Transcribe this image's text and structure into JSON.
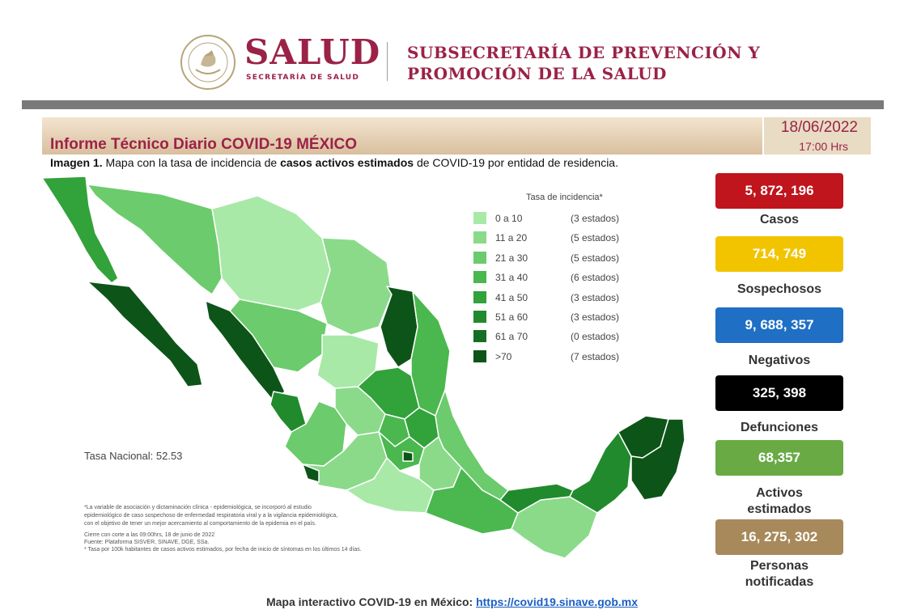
{
  "header": {
    "brand": "SALUD",
    "brand_sub": "SECRETARÍA DE SALUD",
    "subsecretaria_line1": "SUBSECRETARÍA DE PREVENCIÓN Y",
    "subsecretaria_line2": "PROMOCIÓN DE LA SALUD",
    "seal_text": "ESTADOS UNIDOS MEXICANOS"
  },
  "report": {
    "title": "Informe Técnico Diario COVID-19 MÉXICO",
    "date": "18/06/2022",
    "time": "17:00 Hrs",
    "caption_bold": "Imagen 1.",
    "caption_mid": " Mapa con la tasa de incidencia de ",
    "caption_bold2": "casos activos estimados",
    "caption_end": " de COVID-19 por entidad de residencia."
  },
  "legend": {
    "title": "Tasa de incidencia*",
    "items": [
      {
        "range": "0 a  10",
        "count": "(3 estados)",
        "color": "#a8e9a8"
      },
      {
        "range": "11 a  20",
        "count": "(5 estados)",
        "color": "#8ada8a"
      },
      {
        "range": "21 a  30",
        "count": "(5 estados)",
        "color": "#6ccb6c"
      },
      {
        "range": "31 a  40",
        "count": "(6 estados)",
        "color": "#4ab84e"
      },
      {
        "range": "41 a  50",
        "count": "(3 estados)",
        "color": "#32a23a"
      },
      {
        "range": "51 a  60",
        "count": "(3 estados)",
        "color": "#218a2c"
      },
      {
        "range": "61 a  70",
        "count": "(0 estados)",
        "color": "#156f22"
      },
      {
        "range": ">70",
        "count": "(7 estados)",
        "color": "#0d5418"
      }
    ]
  },
  "map": {
    "tasa_nacional": "Tasa Nacional: 52.53",
    "footnotes": [
      "*La variable de asociación y dictaminación clínica - epidemiológica, se incorporó al estudio",
      "epidemiológico de caso sospechoso de enfermedad respiratoria viral y a la vigilancia epidemiológica,",
      "con el objetivo de tener un mejor acercamiento al comportamiento de la epidemia en el país.",
      "Cierre con corte a las 09:00hrs, 18 de junio de 2022",
      "Fuente: Plataforma SISVER, SINAVE, DGE, SSa.",
      "* Tasa por 100k habitantes de casos activos estimados, por fecha de inicio de síntomas en los últimos 14 días."
    ]
  },
  "stats": [
    {
      "value": "5, 872, 196",
      "label": "Casos",
      "color": "#c0151d"
    },
    {
      "value": "714, 749",
      "label": "Sospechosos",
      "color": "#f2c400"
    },
    {
      "value": "9, 688, 357",
      "label": "Negativos",
      "color": "#1f6fc4"
    },
    {
      "value": "325, 398",
      "label": "Defunciones",
      "color": "#000000"
    },
    {
      "value": "68,357",
      "label_line1": "Activos",
      "label_line2": "estimados",
      "color": "#6aaa45"
    },
    {
      "value": "16, 275, 302",
      "label_line1": "Personas",
      "label_line2": "notificadas",
      "color": "#a8895b"
    }
  ],
  "footer": {
    "text": "Mapa interactivo COVID-19 en México: ",
    "link": "https://covid19.sinave.gob.mx"
  },
  "colors": {
    "brand": "#9b2247",
    "divider": "#7a7a7a"
  }
}
